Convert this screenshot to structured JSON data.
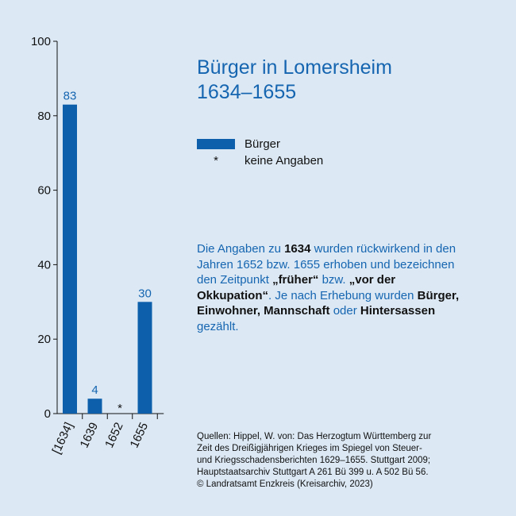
{
  "chart_data": {
    "type": "bar",
    "title_lines": [
      "Bürger in Lomersheim",
      "1634–1655"
    ],
    "categories": [
      "[1634]",
      "1639",
      "1652",
      "1655"
    ],
    "values": [
      83,
      4,
      null,
      30
    ],
    "value_labels": [
      "83",
      "4",
      "*",
      "30"
    ],
    "ylim": [
      0,
      100
    ],
    "yticks": [
      0,
      20,
      40,
      60,
      80,
      100
    ],
    "xlabel": "",
    "ylabel": "",
    "grid": false,
    "bar_color": "#0d5fac",
    "label_color": "#1565b0",
    "legend": {
      "position": "right",
      "entries": [
        {
          "symbol": "bar",
          "label": "Bürger"
        },
        {
          "symbol": "*",
          "label": "keine Angaben"
        }
      ]
    }
  },
  "note": {
    "segments": [
      {
        "text": "Die Angaben zu ",
        "bold": false
      },
      {
        "text": "1634",
        "bold": true
      },
      {
        "text": " wurden rückwirkend in den Jahren 1652 bzw. 1655 erhoben und bezeichnen den Zeitpunkt ",
        "bold": false
      },
      {
        "text": "„früher“",
        "bold": true
      },
      {
        "text": " bzw. ",
        "bold": false
      },
      {
        "text": "„vor der Okkupation“",
        "bold": true
      },
      {
        "text": ". Je nach Erhebung wurden ",
        "bold": false
      },
      {
        "text": "Bürger, Einwohner, Mannschaft",
        "bold": true
      },
      {
        "text": " oder ",
        "bold": false
      },
      {
        "text": "Hintersassen",
        "bold": true
      },
      {
        "text": " gezählt.",
        "bold": false
      }
    ]
  },
  "sources": {
    "lines": [
      "Quellen: Hippel, W. von: Das Herzogtum Württemberg zur",
      "Zeit des Dreißigjährigen Krieges im Spiegel von Steuer-",
      "und Kriegsschadensberichten 1629–1655. Stuttgart 2009;",
      "Hauptstaatsarchiv Stuttgart A 261 Bü 399 u. A 502 Bü 56.",
      "© Landratsamt Enzkreis (Kreisarchiv, 2023)"
    ]
  },
  "colors": {
    "background": "#dce9f5",
    "accent": "#1565b0",
    "bar": "#0d5fac",
    "text": "#111111"
  }
}
